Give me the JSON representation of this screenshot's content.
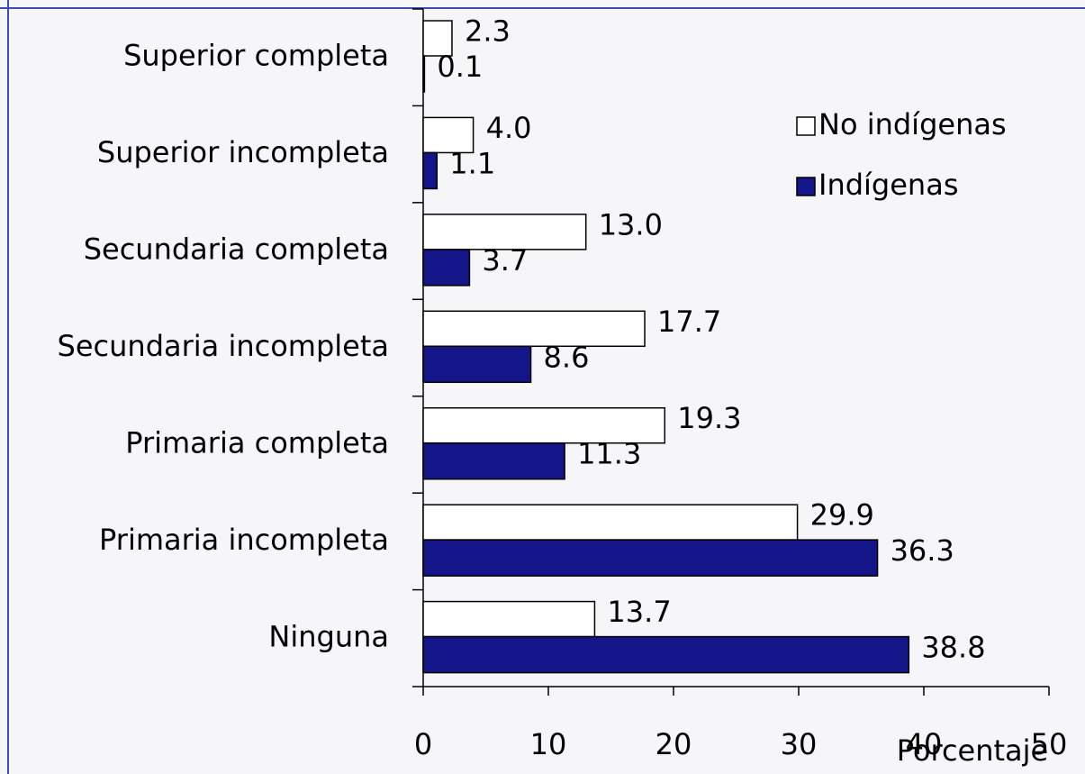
{
  "chart_data": {
    "type": "barh",
    "categories": [
      "Superior completa",
      "Superior incompleta",
      "Secundaria completa",
      "Secundaria incompleta",
      "Primaria completa",
      "Primaria incompleta",
      "Ninguna"
    ],
    "series": [
      {
        "name": "No indígenas",
        "color": "#ffffff",
        "values": [
          2.3,
          4.0,
          13.0,
          17.7,
          19.3,
          29.9,
          13.7
        ],
        "value_labels": [
          "2.3",
          "4.0",
          "13.0",
          "17.7",
          "19.3",
          "29.9",
          "13.7"
        ]
      },
      {
        "name": "Indígenas",
        "color": "#15158a",
        "values": [
          0.1,
          1.1,
          3.7,
          8.6,
          11.3,
          36.3,
          38.8
        ],
        "value_labels": [
          "0.1",
          "1.1",
          "3.7",
          "8.6",
          "11.3",
          "36.3",
          "38.8"
        ]
      }
    ],
    "xlabel": "Porcentaje",
    "xlim": [
      0,
      50
    ],
    "xticks": [
      0,
      10,
      20,
      30,
      40,
      50
    ],
    "legend": "upper right"
  }
}
